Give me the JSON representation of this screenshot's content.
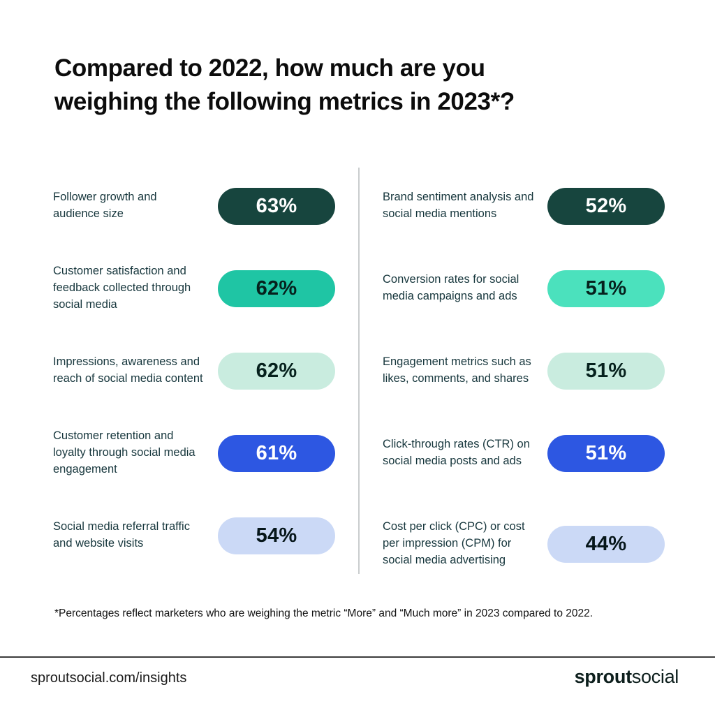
{
  "title": "Compared to 2022, how much are you weighing the following metrics in 2023*?",
  "footnote": "*Percentages reflect marketers who are weighing the metric “More” and “Much more” in 2023 compared to 2022.",
  "footer": {
    "link": "sproutsocial.com/insights",
    "brand_bold": "sprout",
    "brand_regular": "social"
  },
  "colors": {
    "dark_teal": "#17453e",
    "teal": "#1fc5a4",
    "mint_bright": "#4be1bd",
    "mint_light": "#c9ecdf",
    "blue": "#2d57e2",
    "periwinkle": "#cbd9f6",
    "label_text": "#16363c",
    "divider": "#c9cdce"
  },
  "columns": [
    {
      "items": [
        {
          "label": "Follower growth and audience size",
          "value": "63%",
          "color": "#17453e"
        },
        {
          "label": "Customer satisfaction and feedback collected through social media",
          "value": "62%",
          "color": "#1fc5a4"
        },
        {
          "label": "Impressions, awareness and reach of social media content",
          "value": "62%",
          "color": "#c9ecdf"
        },
        {
          "label": "Customer retention and loyalty through social media engagement",
          "value": "61%",
          "color": "#2d57e2"
        },
        {
          "label": "Social media referral traffic and website visits",
          "value": "54%",
          "color": "#cbd9f6"
        }
      ]
    },
    {
      "items": [
        {
          "label": "Brand sentiment analysis and social media mentions",
          "value": "52%",
          "color": "#17453e"
        },
        {
          "label": "Conversion rates for social media campaigns and ads",
          "value": "51%",
          "color": "#4be1bd"
        },
        {
          "label": "Engagement metrics such as likes, comments, and shares",
          "value": "51%",
          "color": "#c9ecdf"
        },
        {
          "label": "Click-through rates (CTR) on social media posts and ads",
          "value": "51%",
          "color": "#2d57e2"
        },
        {
          "label": "Cost per click (CPC) or cost per impression (CPM) for social media advertising",
          "value": "44%",
          "color": "#cbd9f6"
        }
      ]
    }
  ],
  "chart_data": {
    "type": "bar",
    "title": "Compared to 2022, how much are you weighing the following metrics in 2023*?",
    "unit": "%",
    "categories": [
      "Follower growth and audience size",
      "Customer satisfaction and feedback collected through social media",
      "Impressions, awareness and reach of social media content",
      "Customer retention and loyalty through social media engagement",
      "Social media referral traffic and website visits",
      "Brand sentiment analysis and social media mentions",
      "Conversion rates for social media campaigns and ads",
      "Engagement metrics such as likes, comments, and shares",
      "Click-through rates (CTR) on social media posts and ads",
      "Cost per click (CPC) or cost per impression (CPM) for social media advertising"
    ],
    "values": [
      63,
      62,
      62,
      61,
      54,
      52,
      51,
      51,
      51,
      44
    ],
    "note": "*Percentages reflect marketers who are weighing the metric “More” and “Much more” in 2023 compared to 2022.",
    "legend": "none",
    "grid": false
  }
}
